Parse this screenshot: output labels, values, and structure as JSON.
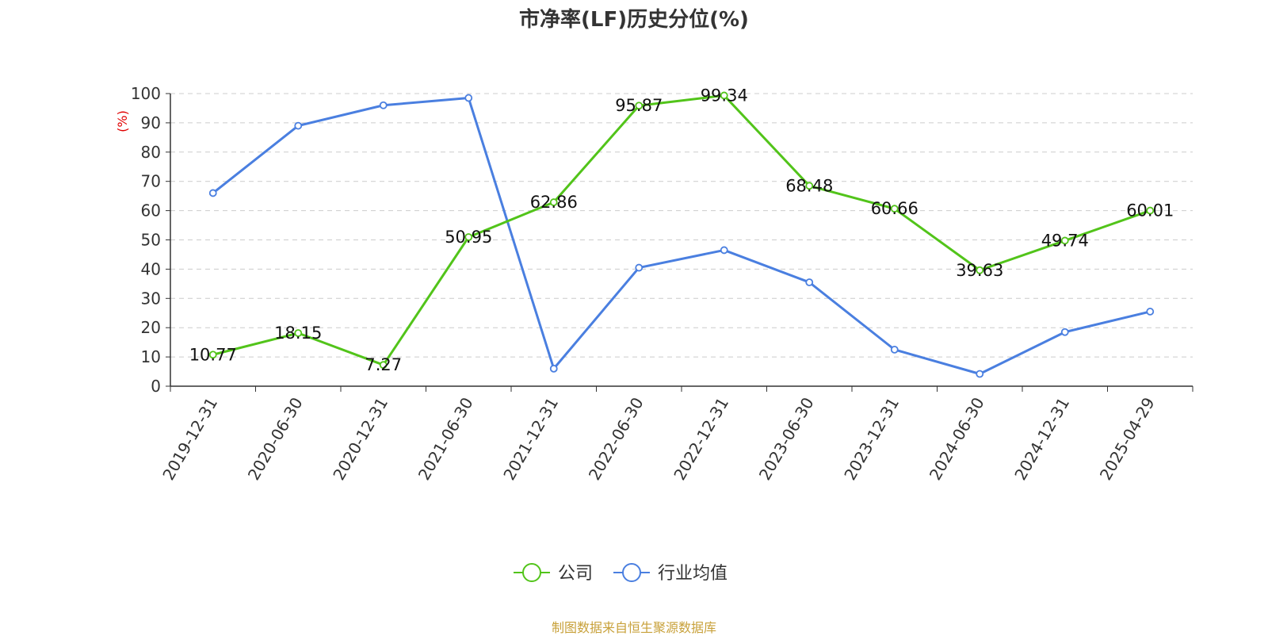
{
  "title": "市净率(LF)历史分位(%)",
  "source": "制图数据来自恒生聚源数据库",
  "colors": {
    "company": "#52C41A",
    "industry": "#4A7FE0",
    "source": "#C8A13A",
    "ylabel": "#E00000"
  },
  "chart_data": {
    "type": "line",
    "title": "市净率(LF)历史分位(%)",
    "ylabel": "(%)",
    "xlabel": "",
    "ylim": [
      0,
      100
    ],
    "yticks": [
      0,
      10,
      20,
      30,
      40,
      50,
      60,
      70,
      80,
      90,
      100
    ],
    "grid": true,
    "legend_position": "bottom",
    "categories": [
      "2019-12-31",
      "2020-06-30",
      "2020-12-31",
      "2021-06-30",
      "2021-12-31",
      "2022-06-30",
      "2022-12-31",
      "2023-06-30",
      "2023-12-31",
      "2024-06-30",
      "2024-12-31",
      "2025-04-29"
    ],
    "series": [
      {
        "name": "公司",
        "values": [
          10.77,
          18.15,
          7.27,
          50.95,
          62.86,
          95.87,
          99.34,
          68.48,
          60.66,
          39.63,
          49.74,
          60.01
        ],
        "labels": [
          "10.77",
          "18.15",
          "7.27",
          "50.95",
          "62.86",
          "95.87",
          "99.34",
          "68.48",
          "60.66",
          "39.63",
          "49.74",
          "60.01"
        ]
      },
      {
        "name": "行业均值",
        "values": [
          66,
          89,
          96,
          98.5,
          6,
          40.5,
          46.5,
          35.5,
          12.5,
          4.2,
          18.5,
          25.5
        ]
      }
    ]
  }
}
